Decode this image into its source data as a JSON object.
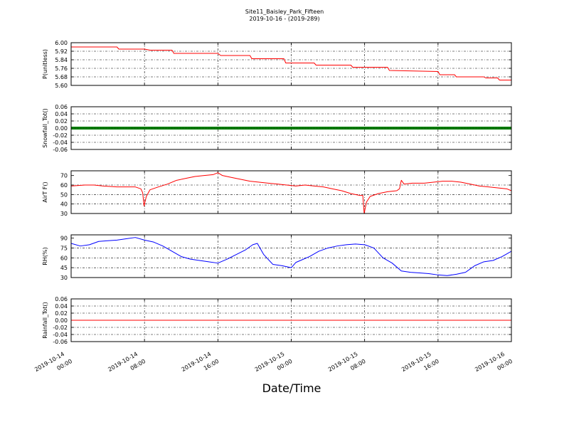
{
  "figure": {
    "title": "Site11_Baisley_Park_Fifteen",
    "subtitle": "2019-10-16 - (2019-289)",
    "xlabel": "Date/Time",
    "x_ticks": [
      {
        "t": 0,
        "line1": "2019-10-14",
        "line2": "00:00"
      },
      {
        "t": 8,
        "line1": "2019-10-14",
        "line2": "08:00"
      },
      {
        "t": 16,
        "line1": "2019-10-14",
        "line2": "16:00"
      },
      {
        "t": 24,
        "line1": "2019-10-15",
        "line2": "00:00"
      },
      {
        "t": 32,
        "line1": "2019-10-15",
        "line2": "08:00"
      },
      {
        "t": 40,
        "line1": "2019-10-15",
        "line2": "16:00"
      },
      {
        "t": 48,
        "line1": "2019-10-16",
        "line2": "00:00"
      }
    ]
  },
  "chart_data": [
    {
      "type": "line",
      "ylabel": "P(unitless)",
      "color": "#ff0000",
      "ylim": [
        5.6,
        6.0
      ],
      "yticks": [
        "5.60",
        "5.68",
        "5.76",
        "5.84",
        "5.92",
        "6.00"
      ],
      "xlim_hours": [
        0,
        48
      ],
      "grid": true,
      "x_hours": [
        0,
        5,
        5.2,
        8,
        8.6,
        11,
        11.2,
        16,
        16.3,
        19.5,
        19.7,
        23.2,
        23.4,
        26.5,
        26.7,
        30.5,
        30.7,
        34.5,
        34.7,
        40,
        40.2,
        41.8,
        42,
        45,
        45.2,
        46.5,
        46.7,
        48
      ],
      "values": [
        5.96,
        5.96,
        5.94,
        5.94,
        5.93,
        5.93,
        5.9,
        5.9,
        5.88,
        5.88,
        5.85,
        5.85,
        5.81,
        5.81,
        5.79,
        5.79,
        5.77,
        5.77,
        5.74,
        5.73,
        5.7,
        5.7,
        5.68,
        5.68,
        5.67,
        5.67,
        5.65,
        5.65
      ]
    },
    {
      "type": "line",
      "ylabel": "Snowfall_Tot()",
      "color": "#008000",
      "ylim": [
        -0.06,
        0.06
      ],
      "yticks": [
        "-0.06",
        "-0.04",
        "-0.02",
        "0.00",
        "0.02",
        "0.04",
        "0.06"
      ],
      "xlim_hours": [
        0,
        48
      ],
      "grid": true,
      "x_hours": [
        0,
        48
      ],
      "values": [
        0,
        0
      ]
    },
    {
      "type": "line",
      "ylabel": "AirT F()",
      "color": "#ff0000",
      "ylim": [
        30,
        75
      ],
      "yticks": [
        "30",
        "40",
        "50",
        "60",
        "70"
      ],
      "xlim_hours": [
        0,
        48
      ],
      "grid": true,
      "x_hours": [
        0,
        1.5,
        2.5,
        3.5,
        5,
        6,
        7,
        7.6,
        7.8,
        7.95,
        8.2,
        8.6,
        9.5,
        10.5,
        11.5,
        12.5,
        13.5,
        14.5,
        15.5,
        16,
        16.5,
        17.5,
        18.5,
        19.5,
        20.5,
        21.5,
        22.5,
        23.5,
        24.5,
        25.5,
        26.5,
        27.5,
        28.5,
        29.5,
        30.5,
        31,
        31.5,
        31.8,
        31.95,
        32.2,
        32.6,
        33.5,
        34.5,
        35.5,
        35.8,
        36,
        36.3,
        37.2,
        38.5,
        39.5,
        40.5,
        41.5,
        42.5,
        43.5,
        44.5,
        45.5,
        46.5,
        47.5,
        48
      ],
      "values": [
        59,
        60,
        60,
        59,
        58,
        58,
        58,
        56,
        52,
        38,
        48,
        55,
        58,
        61,
        65,
        67,
        69,
        70,
        71,
        73,
        70,
        68,
        66,
        64,
        63,
        62,
        61,
        60,
        59,
        60,
        59,
        58,
        56,
        54,
        51,
        50,
        49,
        49,
        30,
        42,
        48,
        51,
        53,
        54,
        56,
        65,
        61,
        62,
        62,
        63,
        64,
        64,
        63,
        61,
        59,
        58,
        57,
        56,
        54
      ]
    },
    {
      "type": "line",
      "ylabel": "RH(%)",
      "color": "#0000ff",
      "ylim": [
        30,
        95
      ],
      "yticks": [
        "30",
        "45",
        "60",
        "75",
        "90"
      ],
      "xlim_hours": [
        0,
        48
      ],
      "grid": true,
      "x_hours": [
        0,
        1,
        2,
        3,
        4,
        5,
        6,
        7,
        8,
        9,
        10,
        11,
        12,
        13,
        14,
        15,
        16,
        17,
        18,
        19,
        19.8,
        20.3,
        21,
        22,
        23,
        24,
        24.5,
        25,
        26,
        27,
        28,
        29,
        30,
        31,
        32,
        33,
        34,
        35,
        36,
        37,
        38,
        39,
        40,
        41,
        42,
        43,
        44,
        45,
        46,
        47,
        48
      ],
      "values": [
        82,
        78,
        80,
        85,
        86,
        87,
        89,
        91,
        87,
        84,
        78,
        70,
        62,
        58,
        56,
        54,
        52,
        58,
        65,
        72,
        80,
        82,
        65,
        50,
        48,
        45,
        53,
        56,
        62,
        70,
        75,
        78,
        80,
        81,
        80,
        75,
        60,
        52,
        40,
        38,
        37,
        36,
        34,
        33,
        35,
        38,
        48,
        54,
        56,
        62,
        70
      ]
    },
    {
      "type": "line",
      "ylabel": "Rainfall_Tot()",
      "color": "#ff0000",
      "ylim": [
        -0.06,
        0.06
      ],
      "yticks": [
        "-0.06",
        "-0.04",
        "-0.02",
        "0.00",
        "0.02",
        "0.04",
        "0.06"
      ],
      "xlim_hours": [
        0,
        48
      ],
      "grid": true,
      "x_hours": [
        0,
        48
      ],
      "values": [
        0,
        0
      ]
    }
  ]
}
